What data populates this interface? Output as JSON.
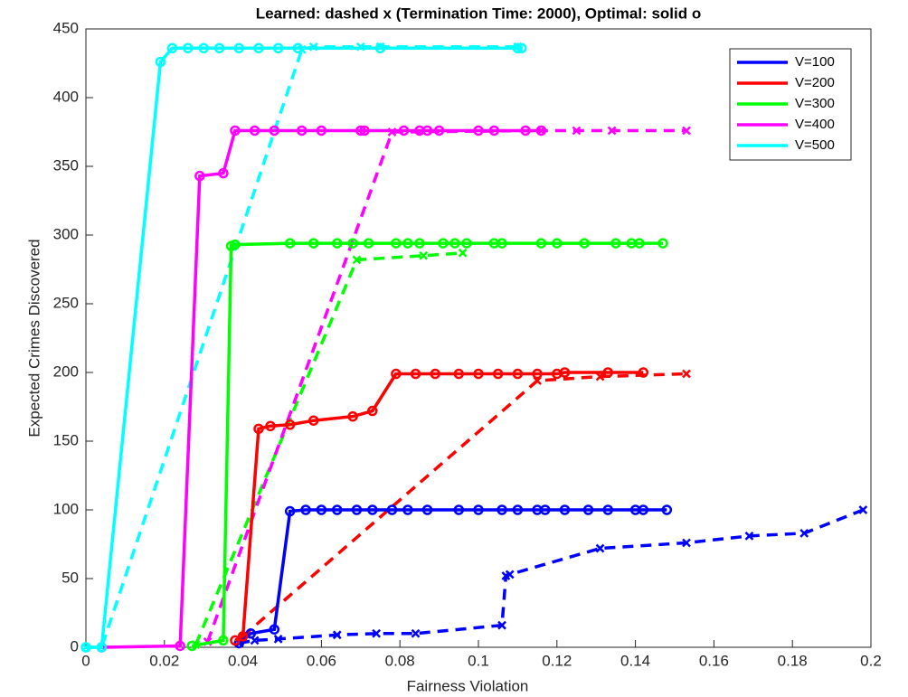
{
  "chart_data": {
    "type": "line",
    "title": "Learned: dashed x (Termination Time: 2000), Optimal: solid o",
    "x_label": "Fairness Violation",
    "y_label": "Expected Crimes Discovered",
    "xlim": [
      0,
      0.2
    ],
    "ylim": [
      0,
      450
    ],
    "xticks": [
      0,
      0.02,
      0.04,
      0.06,
      0.08,
      0.1,
      0.12,
      0.14,
      0.16,
      0.18,
      0.2
    ],
    "yticks": [
      0,
      50,
      100,
      150,
      200,
      250,
      300,
      350,
      400,
      450
    ],
    "grid": false,
    "legend_position": "upper right",
    "series": [
      {
        "name": "V=100",
        "color": "#0000ff",
        "x": [
          0.039,
          0.042,
          0.048,
          0.052,
          0.056,
          0.06,
          0.064,
          0.069,
          0.073,
          0.078,
          0.082,
          0.087,
          0.095,
          0.1,
          0.106,
          0.11,
          0.115,
          0.117,
          0.122,
          0.128,
          0.133,
          0.14,
          0.142,
          0.148
        ],
        "values": [
          3,
          10,
          13,
          99,
          100,
          100,
          100,
          100,
          100,
          100,
          100,
          100,
          100,
          100,
          100,
          100,
          100,
          100,
          100,
          100,
          100,
          100,
          100,
          100
        ]
      },
      {
        "name": "V=200",
        "color": "#ff0000",
        "x": [
          0.038,
          0.04,
          0.044,
          0.047,
          0.052,
          0.058,
          0.068,
          0.073,
          0.079,
          0.084,
          0.089,
          0.095,
          0.1,
          0.105,
          0.11,
          0.115,
          0.12,
          0.122,
          0.133,
          0.142
        ],
        "values": [
          5,
          8,
          159,
          161,
          162,
          165,
          168,
          172,
          199,
          199,
          199,
          199,
          199,
          199,
          199,
          199,
          199,
          200,
          200,
          200
        ]
      },
      {
        "name": "V=300",
        "color": "#00ff00",
        "x": [
          0.027,
          0.035,
          0.037,
          0.038,
          0.052,
          0.058,
          0.064,
          0.068,
          0.072,
          0.079,
          0.082,
          0.085,
          0.091,
          0.094,
          0.097,
          0.104,
          0.106,
          0.116,
          0.12,
          0.127,
          0.135,
          0.139,
          0.141,
          0.147
        ],
        "values": [
          1,
          5,
          292,
          293,
          294,
          294,
          294,
          294,
          294,
          294,
          294,
          294,
          294,
          294,
          294,
          294,
          294,
          294,
          294,
          294,
          294,
          294,
          294,
          294
        ]
      },
      {
        "name": "V=400",
        "color": "#ff00ff",
        "x": [
          0.004,
          0.024,
          0.029,
          0.035,
          0.038,
          0.043,
          0.048,
          0.055,
          0.06,
          0.07,
          0.071,
          0.081,
          0.085,
          0.087,
          0.09,
          0.1,
          0.104,
          0.112,
          0.116
        ],
        "values": [
          0,
          1,
          343,
          345,
          376,
          376,
          376,
          376,
          376,
          376,
          376,
          376,
          376,
          376,
          376,
          376,
          376,
          376,
          376
        ]
      },
      {
        "name": "V=500",
        "color": "#00ffff",
        "x": [
          0,
          0.004,
          0.019,
          0.022,
          0.026,
          0.03,
          0.034,
          0.039,
          0.044,
          0.049,
          0.054,
          0.075,
          0.11,
          0.111
        ],
        "values": [
          0,
          0,
          426,
          436,
          436,
          436,
          436,
          436,
          436,
          436,
          436,
          436,
          436,
          436
        ]
      }
    ],
    "learned": [
      {
        "color": "#0000ff",
        "x": [
          0.039,
          0.043,
          0.049,
          0.064,
          0.074,
          0.084,
          0.106,
          0.107,
          0.108,
          0.131,
          0.153,
          0.169,
          0.183,
          0.198
        ],
        "values": [
          3,
          5,
          6,
          9,
          10,
          10,
          16,
          52,
          53,
          72,
          76,
          81,
          83,
          100
        ]
      },
      {
        "color": "#ff0000",
        "x": [
          0.04,
          0.115,
          0.131,
          0.153
        ],
        "values": [
          8,
          194,
          197,
          199
        ]
      },
      {
        "color": "#00ff00",
        "x": [
          0.028,
          0.069,
          0.086,
          0.096
        ],
        "values": [
          2,
          282,
          285,
          287
        ]
      },
      {
        "color": "#ff00ff",
        "x": [
          0.031,
          0.078,
          0.116,
          0.125,
          0.134,
          0.153
        ],
        "values": [
          4,
          375,
          376,
          376,
          376,
          376
        ]
      },
      {
        "color": "#00ffff",
        "x": [
          0,
          0.004,
          0.055,
          0.058,
          0.07,
          0.075,
          0.11
        ],
        "values": [
          0,
          0,
          435,
          437,
          437,
          437,
          437
        ]
      }
    ]
  }
}
